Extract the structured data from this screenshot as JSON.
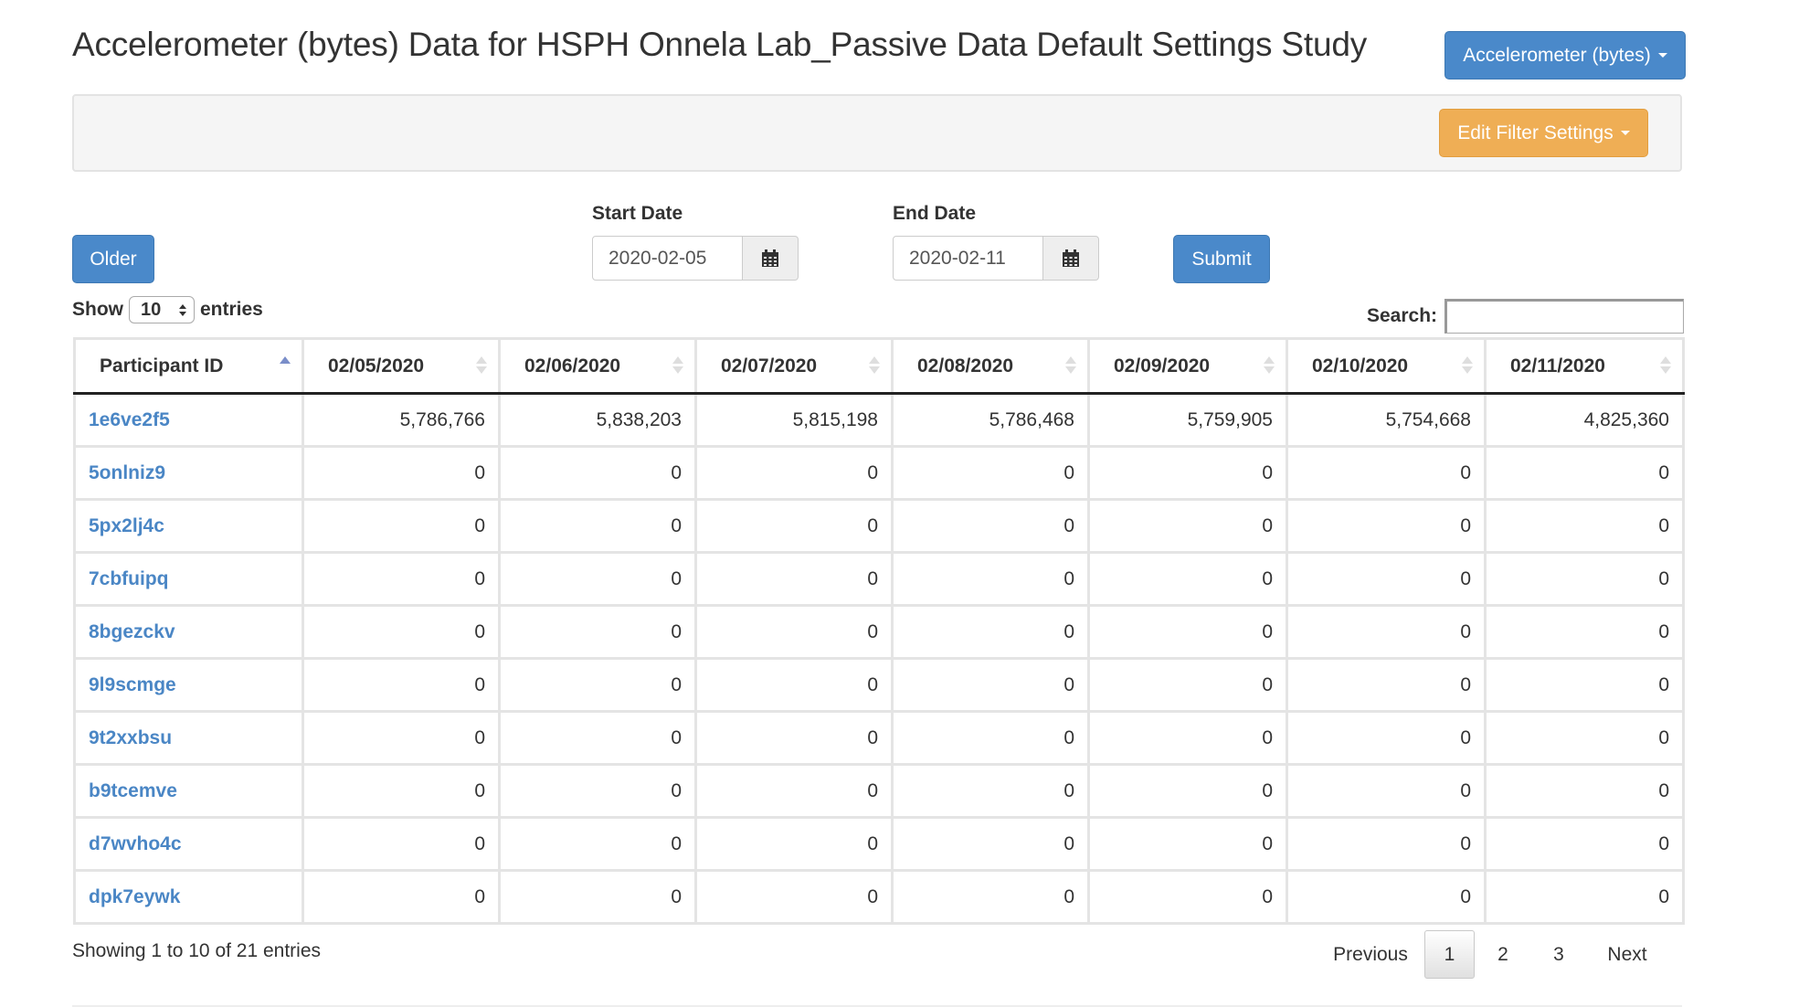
{
  "header": {
    "title": "Accelerometer (bytes) Data for HSPH Onnela Lab_Passive Data Default Settings Study",
    "data_type_button": "Accelerometer (bytes)"
  },
  "filter": {
    "edit_button": "Edit Filter Settings"
  },
  "date_controls": {
    "older_button": "Older",
    "start_label": "Start Date",
    "start_value": "2020-02-05",
    "end_label": "End Date",
    "end_value": "2020-02-11",
    "submit_button": "Submit",
    "calendar_icon": "calendar-icon"
  },
  "length": {
    "show_label": "Show",
    "value": "10",
    "entries_label": "entries"
  },
  "search": {
    "label": "Search:",
    "value": ""
  },
  "table": {
    "columns": [
      "Participant ID",
      "02/05/2020",
      "02/06/2020",
      "02/07/2020",
      "02/08/2020",
      "02/09/2020",
      "02/10/2020",
      "02/11/2020"
    ],
    "rows": [
      {
        "id": "1e6ve2f5",
        "values": [
          "5,786,766",
          "5,838,203",
          "5,815,198",
          "5,786,468",
          "5,759,905",
          "5,754,668",
          "4,825,360"
        ]
      },
      {
        "id": "5onlniz9",
        "values": [
          "0",
          "0",
          "0",
          "0",
          "0",
          "0",
          "0"
        ]
      },
      {
        "id": "5px2lj4c",
        "values": [
          "0",
          "0",
          "0",
          "0",
          "0",
          "0",
          "0"
        ]
      },
      {
        "id": "7cbfuipq",
        "values": [
          "0",
          "0",
          "0",
          "0",
          "0",
          "0",
          "0"
        ]
      },
      {
        "id": "8bgezckv",
        "values": [
          "0",
          "0",
          "0",
          "0",
          "0",
          "0",
          "0"
        ]
      },
      {
        "id": "9l9scmge",
        "values": [
          "0",
          "0",
          "0",
          "0",
          "0",
          "0",
          "0"
        ]
      },
      {
        "id": "9t2xxbsu",
        "values": [
          "0",
          "0",
          "0",
          "0",
          "0",
          "0",
          "0"
        ]
      },
      {
        "id": "b9tcemve",
        "values": [
          "0",
          "0",
          "0",
          "0",
          "0",
          "0",
          "0"
        ]
      },
      {
        "id": "d7wvho4c",
        "values": [
          "0",
          "0",
          "0",
          "0",
          "0",
          "0",
          "0"
        ]
      },
      {
        "id": "dpk7eywk",
        "values": [
          "0",
          "0",
          "0",
          "0",
          "0",
          "0",
          "0"
        ]
      }
    ]
  },
  "footer": {
    "info": "Showing 1 to 10 of 21 entries",
    "previous": "Previous",
    "pages": [
      "1",
      "2",
      "3"
    ],
    "current_page": "1",
    "next": "Next"
  }
}
